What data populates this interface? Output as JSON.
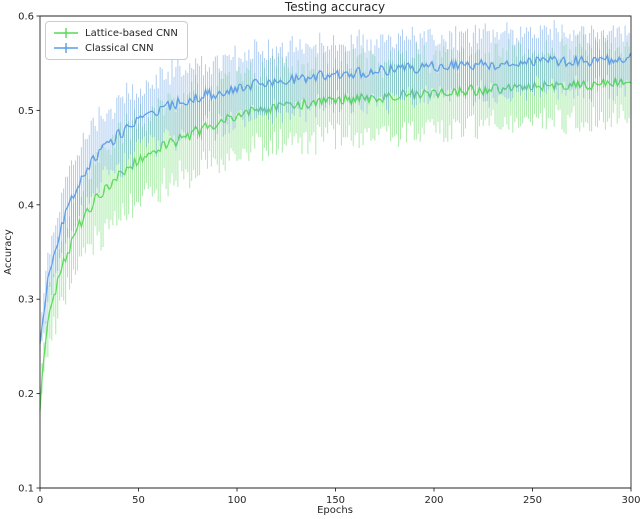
{
  "title": "Testing accuracy",
  "chart_data": {
    "type": "line",
    "title": "Testing accuracy",
    "xlabel": "Epochs",
    "ylabel": "Accuracy",
    "xlim": [
      0,
      300
    ],
    "ylim": [
      0.1,
      0.6
    ],
    "xticks": [
      0,
      50,
      100,
      150,
      200,
      250,
      300
    ],
    "yticks": [
      0.1,
      0.2,
      0.3,
      0.4,
      0.5,
      0.6
    ],
    "grid": false,
    "legend_position": "upper left",
    "errorbar_alpha": 0.5,
    "noise_seed": 42,
    "noise_amp": 0.006,
    "x_samples": [
      0,
      1,
      2,
      3,
      4,
      5,
      7,
      10,
      13,
      16,
      20,
      25,
      30,
      35,
      40,
      45,
      50,
      60,
      70,
      80,
      90,
      100,
      120,
      140,
      160,
      180,
      200,
      220,
      240,
      260,
      280,
      300
    ],
    "series": [
      {
        "name": "Lattice-based CNN",
        "color": "#57d957",
        "y": [
          0.185,
          0.215,
          0.24,
          0.258,
          0.272,
          0.284,
          0.303,
          0.325,
          0.344,
          0.36,
          0.378,
          0.396,
          0.41,
          0.421,
          0.431,
          0.44,
          0.447,
          0.459,
          0.468,
          0.478,
          0.487,
          0.495,
          0.503,
          0.508,
          0.512,
          0.515,
          0.518,
          0.521,
          0.523,
          0.525,
          0.527,
          0.53
        ],
        "err": [
          0.012,
          0.02,
          0.024,
          0.026,
          0.028,
          0.03,
          0.032,
          0.035,
          0.037,
          0.038,
          0.04,
          0.041,
          0.042,
          0.042,
          0.042,
          0.042,
          0.042,
          0.042,
          0.041,
          0.041,
          0.04,
          0.04,
          0.039,
          0.039,
          0.038,
          0.038,
          0.038,
          0.037,
          0.037,
          0.037,
          0.037,
          0.037
        ]
      },
      {
        "name": "Classical CNN",
        "color": "#5b9ce6",
        "y": [
          0.25,
          0.268,
          0.287,
          0.303,
          0.318,
          0.33,
          0.35,
          0.37,
          0.389,
          0.404,
          0.424,
          0.441,
          0.455,
          0.465,
          0.474,
          0.482,
          0.489,
          0.5,
          0.508,
          0.514,
          0.519,
          0.524,
          0.531,
          0.536,
          0.54,
          0.543,
          0.546,
          0.548,
          0.55,
          0.552,
          0.553,
          0.555
        ],
        "err": [
          0.01,
          0.016,
          0.02,
          0.022,
          0.024,
          0.026,
          0.028,
          0.031,
          0.033,
          0.034,
          0.035,
          0.035,
          0.035,
          0.035,
          0.035,
          0.034,
          0.034,
          0.034,
          0.033,
          0.033,
          0.033,
          0.033,
          0.032,
          0.032,
          0.032,
          0.031,
          0.031,
          0.031,
          0.03,
          0.03,
          0.03,
          0.03
        ]
      }
    ]
  },
  "legend": {
    "items": [
      {
        "label": "Lattice-based CNN",
        "color": "#57d957"
      },
      {
        "label": "Classical CNN",
        "color": "#5b9ce6"
      }
    ]
  }
}
